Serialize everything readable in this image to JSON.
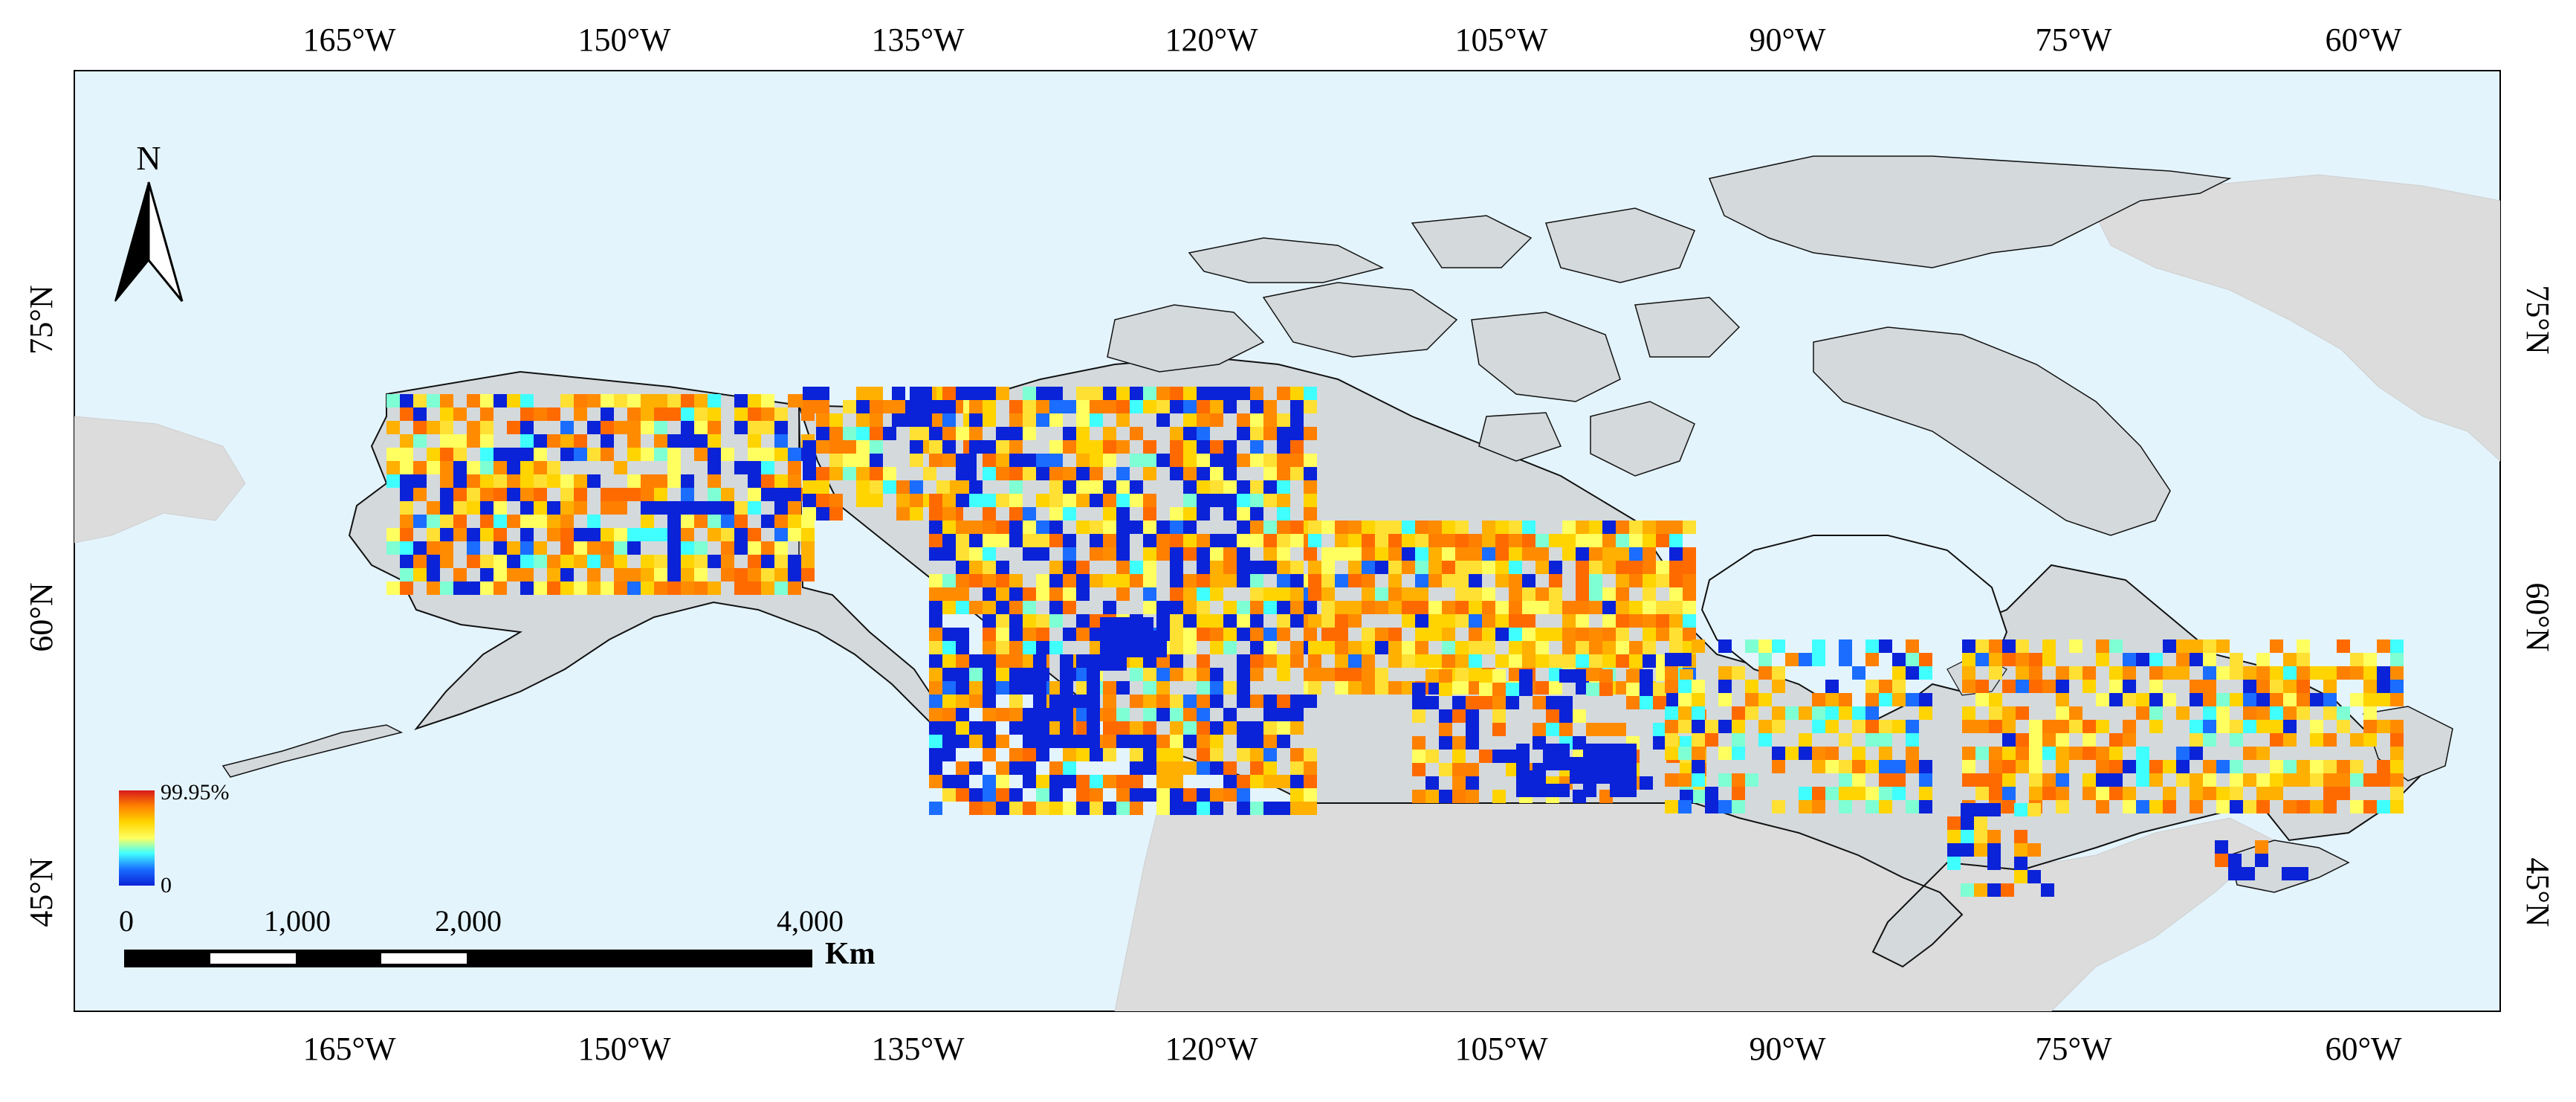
{
  "map": {
    "colors": {
      "ocean": "#e4f4fc",
      "land_focus": "#d4d9dc",
      "land_other": "#dcdcdc",
      "outline": "#111111"
    },
    "longitude_labels": [
      "165°W",
      "150°W",
      "135°W",
      "120°W",
      "105°W",
      "90°W",
      "75°W",
      "60°W"
    ],
    "latitude_labels": [
      "75°N",
      "60°N",
      "45°N"
    ],
    "north_arrow": {
      "letter": "N",
      "icon": "north-arrow-icon"
    },
    "legend": {
      "max_label": "99.95%",
      "min_label": "0",
      "colors": [
        "#d7191c",
        "#ff7f00",
        "#ffd400",
        "#ffff60",
        "#40ffff",
        "#1a6dff",
        "#0a22d8"
      ]
    },
    "scale_bar": {
      "labels": [
        "0",
        "1,000",
        "2,000",
        "4,000"
      ],
      "unit": "Km"
    },
    "grid_cells_note": "value cells colored by ramp"
  }
}
